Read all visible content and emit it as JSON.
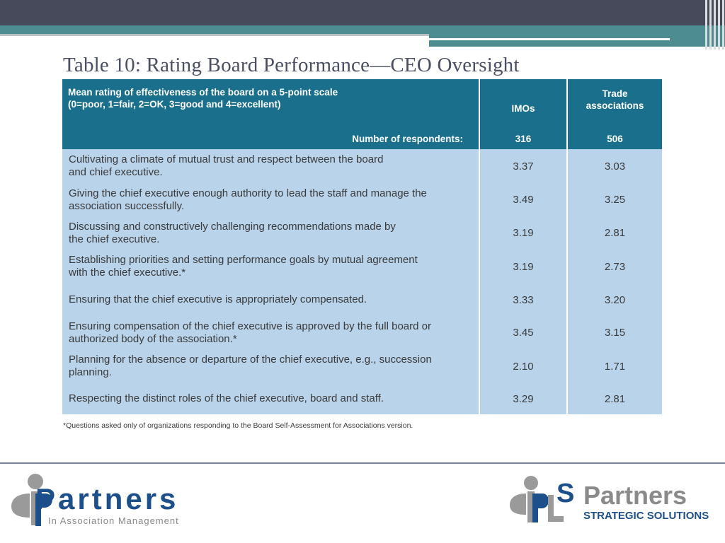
{
  "title": "Table 10: Rating Board Performance—CEO Oversight",
  "table": {
    "header": {
      "description_line1": "Mean rating of effectiveness of the board on  a 5-point scale",
      "description_line2": "(0=poor, 1=fair, 2=OK, 3=good and 4=excellent)",
      "respondents_label": "Number of respondents:",
      "col_imos": "IMOs",
      "col_trade_line1": "Trade",
      "col_trade_line2": "associations",
      "n_imos": "316",
      "n_trade": "506"
    },
    "rows": [
      {
        "line1": "Cultivating a climate of mutual trust and respect between the board",
        "line2": "and chief executive.",
        "imos": "3.37",
        "trade": "3.03"
      },
      {
        "line1": "Giving the chief executive enough authority to lead the staff and manage the",
        "line2": "association successfully.",
        "imos": "3.49",
        "trade": "3.25"
      },
      {
        "line1": "Discussing and constructively challenging recommendations made by",
        "line2": "the chief executive.",
        "imos": "3.19",
        "trade": "2.81"
      },
      {
        "line1": "Establishing priorities and setting performance goals by mutual agreement",
        "line2": "with the chief executive.*",
        "imos": "3.19",
        "trade": "2.73"
      },
      {
        "line1": "Ensuring that the chief executive is appropriately compensated.",
        "line2": "",
        "imos": "3.33",
        "trade": "3.20"
      },
      {
        "line1": "Ensuring compensation of the chief executive is approved by the full board or",
        "line2": "authorized body of the association.*",
        "imos": "3.45",
        "trade": "3.15"
      },
      {
        "line1": "Planning for the absence or departure of the chief executive, e.g., succession",
        "line2": "planning.",
        "imos": "2.10",
        "trade": "1.71"
      },
      {
        "line1": "Respecting the distinct roles of the chief executive, board and staff.",
        "line2": "",
        "imos": "3.29",
        "trade": "2.81"
      }
    ]
  },
  "footnote": "*Questions asked only of organizations responding to the Board Self-Assessment for Associations version.",
  "logo_left": {
    "name": "Partners",
    "tagline": "In Association Management"
  },
  "logo_right": {
    "name": "Partners",
    "tagline": "STRATEGIC SOLUTIONS"
  },
  "colors": {
    "header_blue": "#1a6f8c",
    "row_blue": "#b9d3ea",
    "teal": "#4d8c91",
    "dark_bar": "#474a5a"
  }
}
